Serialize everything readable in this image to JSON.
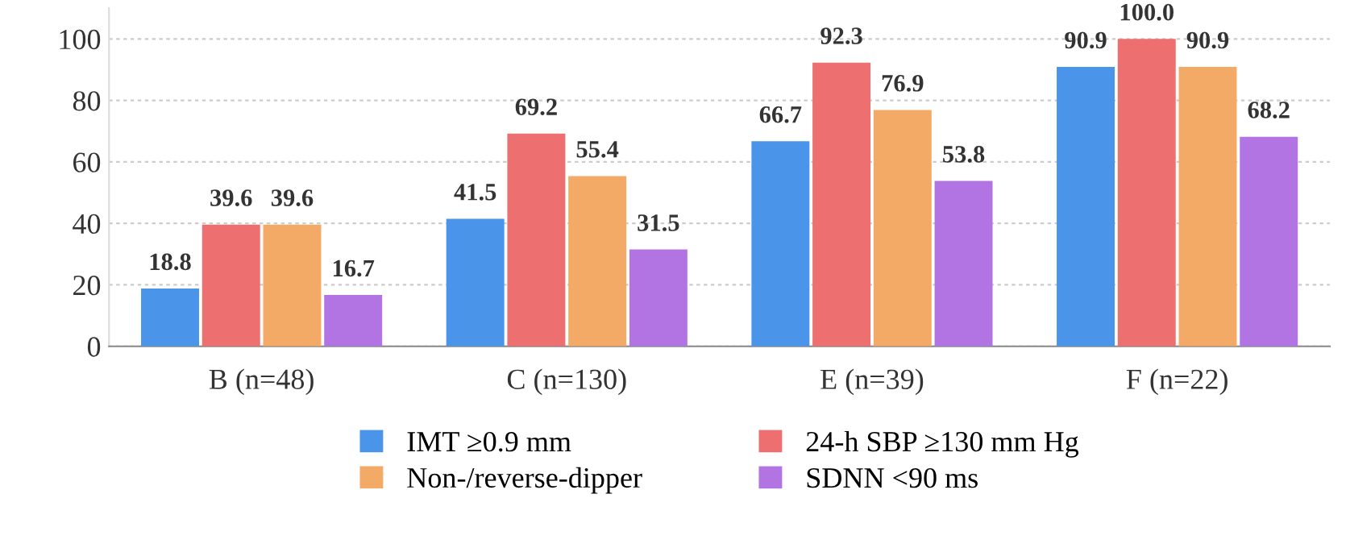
{
  "chart_data": {
    "type": "bar",
    "categories": [
      "B (n=48)",
      "C (n=130)",
      "E (n=39)",
      "F (n=22)"
    ],
    "series": [
      {
        "name": "IMT ≥0.9 mm",
        "color": "#4a94ea",
        "values": [
          18.8,
          41.5,
          66.7,
          90.9
        ]
      },
      {
        "name": "24-h SBP ≥130 mm Hg",
        "color": "#ee6f6f",
        "values": [
          39.6,
          69.2,
          92.3,
          100.0
        ]
      },
      {
        "name": "Non-/reverse-dipper",
        "color": "#f3aa66",
        "values": [
          39.6,
          55.4,
          76.9,
          90.9
        ]
      },
      {
        "name": "SDNN <90 ms",
        "color": "#b374e3",
        "values": [
          16.7,
          31.5,
          53.8,
          68.2
        ]
      }
    ],
    "value_labels": [
      [
        "18.8",
        "41.5",
        "66.7",
        "90.9"
      ],
      [
        "39.6",
        "69.2",
        "92.3",
        "100.0"
      ],
      [
        "39.6",
        "55.4",
        "76.9",
        "90.9"
      ],
      [
        "16.7",
        "31.5",
        "53.8",
        "68.2"
      ]
    ],
    "ylim": [
      0,
      110
    ],
    "yticks": [
      0,
      20,
      40,
      60,
      80,
      100
    ],
    "grid": "y",
    "legend": "bottom"
  }
}
